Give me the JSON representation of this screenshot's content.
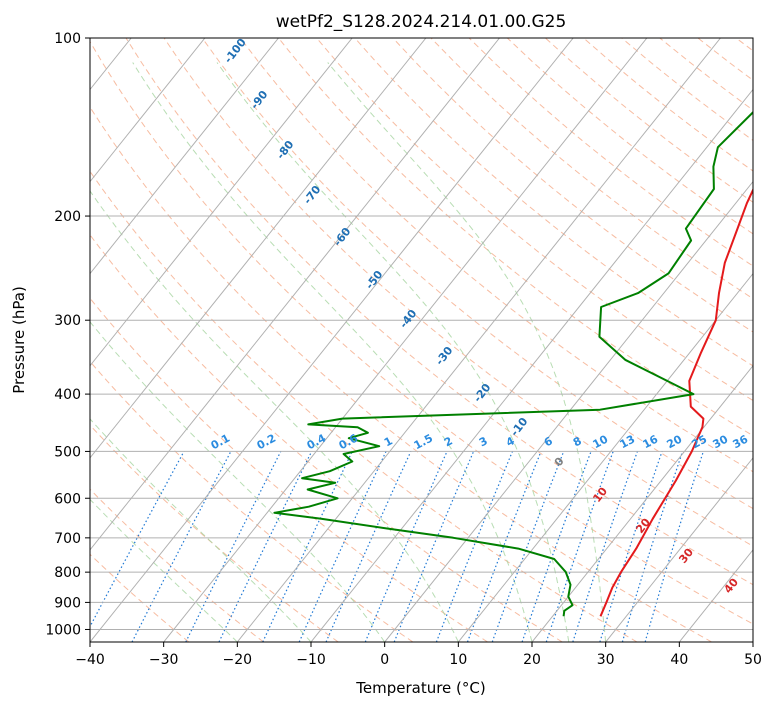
{
  "chart_data": {
    "type": "line",
    "chart_kind": "skew-T log-p",
    "title": "wetPf2_S128.2024.214.01.00.G25",
    "xlabel": "Temperature (°C)",
    "ylabel": "Pressure (hPa)",
    "xlim": [
      -40,
      50
    ],
    "ylim": [
      1050,
      100
    ],
    "y_scale": "log",
    "grid": true,
    "x_ticks": [
      -40,
      -30,
      -20,
      -10,
      0,
      10,
      20,
      30,
      40,
      50
    ],
    "y_ticks": [
      100,
      200,
      300,
      400,
      500,
      600,
      700,
      800,
      900,
      1000
    ],
    "series": [
      {
        "color": "#e41a1c",
        "points": [
          [
            9.0,
            100
          ],
          [
            8.8,
            106
          ],
          [
            5.5,
            115
          ],
          [
            -1.5,
            124
          ],
          [
            -1.8,
            132
          ],
          [
            -0.8,
            150
          ],
          [
            0.2,
            170
          ],
          [
            1.5,
            190
          ],
          [
            3.0,
            210
          ],
          [
            5.0,
            240
          ],
          [
            7.5,
            270
          ],
          [
            10.0,
            300
          ],
          [
            11.5,
            340
          ],
          [
            13.0,
            380
          ],
          [
            16.0,
            420
          ],
          [
            19.0,
            440
          ],
          [
            19.8,
            455
          ],
          [
            21.0,
            500
          ],
          [
            22.0,
            560
          ],
          [
            23.0,
            650
          ],
          [
            24.0,
            730
          ],
          [
            24.5,
            800
          ],
          [
            25.0,
            850
          ],
          [
            25.8,
            900
          ],
          [
            26.5,
            950
          ]
        ]
      },
      {
        "color": "#008000",
        "points": [
          [
            0.0,
            100
          ],
          [
            -6.0,
            104
          ],
          [
            -5.5,
            112
          ],
          [
            -6.0,
            122
          ],
          [
            -7.5,
            133
          ],
          [
            -8.5,
            153
          ],
          [
            -7.0,
            165
          ],
          [
            -4.5,
            180
          ],
          [
            -4.0,
            210
          ],
          [
            -2.0,
            220
          ],
          [
            -1.5,
            250
          ],
          [
            -3.5,
            270
          ],
          [
            -7.0,
            285
          ],
          [
            -4.0,
            320
          ],
          [
            2.0,
            350
          ],
          [
            10.0,
            380
          ],
          [
            15.0,
            400
          ],
          [
            4.0,
            425
          ],
          [
            -30.0,
            440
          ],
          [
            -34.0,
            450
          ],
          [
            -27.0,
            455
          ],
          [
            -25.0,
            465
          ],
          [
            -27.0,
            475
          ],
          [
            -22.0,
            490
          ],
          [
            -26.0,
            505
          ],
          [
            -24.0,
            520
          ],
          [
            -26.0,
            540
          ],
          [
            -29.0,
            555
          ],
          [
            -24.0,
            565
          ],
          [
            -27.0,
            580
          ],
          [
            -22.0,
            600
          ],
          [
            -25.0,
            620
          ],
          [
            -29.0,
            635
          ],
          [
            -22.0,
            650
          ],
          [
            -12.0,
            675
          ],
          [
            -2.0,
            700
          ],
          [
            8.0,
            730
          ],
          [
            14.0,
            760
          ],
          [
            17.0,
            800
          ],
          [
            19.0,
            840
          ],
          [
            20.0,
            880
          ],
          [
            21.5,
            910
          ],
          [
            21.0,
            930
          ],
          [
            21.5,
            950
          ]
        ]
      }
    ],
    "dry_adiabats_theta_c": [
      -30,
      -20,
      -10,
      0,
      10,
      20,
      30,
      40,
      50,
      60,
      70,
      80,
      90,
      100,
      110,
      120,
      130,
      140,
      150,
      160,
      170,
      180,
      190,
      200,
      210,
      220
    ],
    "dry_adiabat_labels": [
      "-100",
      "-90",
      "-80",
      "-70",
      "-60",
      "-50",
      "-40",
      "-30",
      "-20",
      "-10",
      "0",
      "10",
      "20",
      "30",
      "40"
    ],
    "mixing_ratio_labels": [
      "0.1",
      "0.2",
      "0.4",
      "0.6",
      "1",
      "1.5",
      "2",
      "3",
      "4",
      "6",
      "8",
      "10",
      "13",
      "16",
      "20",
      "25",
      "30",
      "36"
    ],
    "colors": {
      "temperature": "#e41a1c",
      "dewpoint": "#008000",
      "dry_adiabat": "#f4a582",
      "moist_adiabat": "#a6d4a0",
      "mixing_ratio": "#1f78d4",
      "grid": "#b0b0b0"
    }
  }
}
